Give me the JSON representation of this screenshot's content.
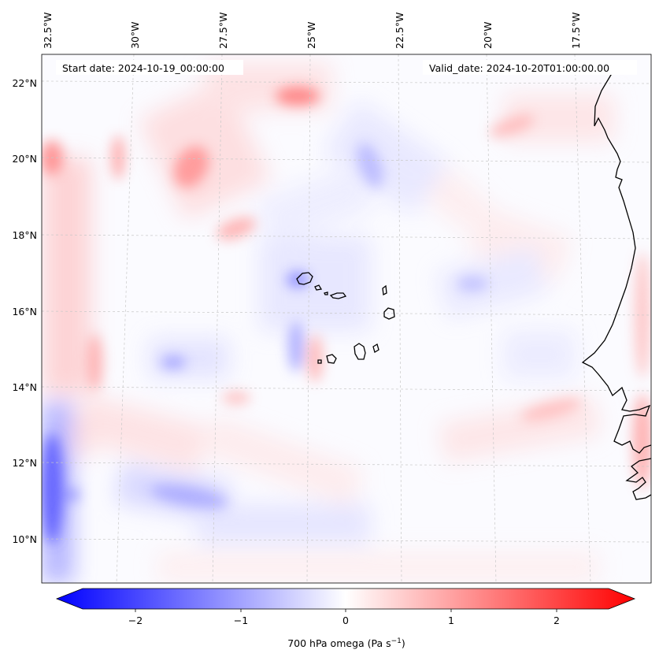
{
  "map": {
    "start_label": "Start date: 2024-10-19_00:00:00",
    "valid_label": "Valid_date: 2024-10-20T01:00:00.00",
    "lon_ticks": [
      "32.5°W",
      "30°W",
      "27.5°W",
      "25°W",
      "22.5°W",
      "20°W",
      "17.5°W"
    ],
    "lat_ticks": [
      "22°N",
      "20°N",
      "18°N",
      "16°N",
      "14°N",
      "12°N",
      "10°N"
    ],
    "field": "700 hPa omega",
    "units": "Pa s⁻¹"
  },
  "colorbar": {
    "label": "700 hPa omega (Pa s",
    "label_exp": "−1",
    "label_close": ")",
    "ticks": [
      "−2",
      "−1",
      "0",
      "1",
      "2"
    ],
    "tick_values": [
      -2,
      -1,
      0,
      1,
      2
    ],
    "range": [
      -2.5,
      2.5
    ],
    "color_low": "#0000ff",
    "color_mid": "#ffffff",
    "color_high": "#ff0000"
  }
}
